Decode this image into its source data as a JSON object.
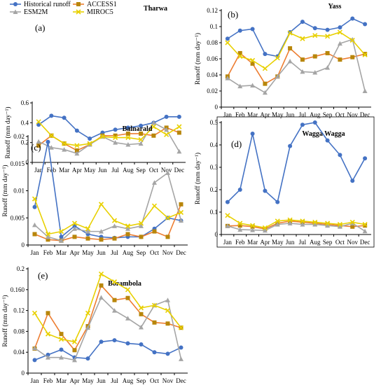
{
  "legend": {
    "entries": [
      {
        "name": "Historical runoff",
        "color": "#4472C4",
        "marker": "circle"
      },
      {
        "name": "ACCESS1",
        "color": "#ED7D31",
        "marker": "square"
      },
      {
        "name": "ESM2M",
        "color": "#A5A5A5",
        "marker": "triangle"
      },
      {
        "name": "MIROC5",
        "color": "#E8D000",
        "marker": "x"
      }
    ]
  },
  "chart_data": [
    {
      "type": "line",
      "panel_label": "(a)",
      "title": "Tharwa",
      "ylabel": "Runoff (mm day⁻¹)",
      "ylim": [
        0,
        0.6
      ],
      "yticks": [
        0,
        0.2,
        0.4,
        0.6
      ],
      "ytick_labels": [
        "0",
        "0.2",
        "0.4",
        "0.6"
      ],
      "categories": [
        "Jan",
        "Feb",
        "Mar",
        "Apr",
        "May",
        "Jun",
        "Jul",
        "Aug",
        "Sep",
        "Oct",
        "Nov",
        "Dec"
      ],
      "series": [
        {
          "name": "Historical runoff",
          "values": [
            0.38,
            0.47,
            0.45,
            0.32,
            0.24,
            0.3,
            0.33,
            0.35,
            0.37,
            0.4,
            0.46,
            0.46
          ]
        },
        {
          "name": "ACCESS1",
          "values": [
            0.17,
            0.27,
            0.19,
            0.12,
            0.18,
            0.27,
            0.27,
            0.29,
            0.29,
            0.27,
            0.35,
            0.3
          ]
        },
        {
          "name": "ESM2M",
          "values": [
            0.21,
            0.15,
            0.13,
            0.09,
            0.18,
            0.26,
            0.2,
            0.18,
            0.19,
            0.4,
            0.33,
            0.11
          ]
        },
        {
          "name": "MIROC5",
          "values": [
            0.41,
            0.27,
            0.19,
            0.17,
            0.19,
            0.26,
            0.25,
            0.25,
            0.23,
            0.36,
            0.28,
            0.36
          ]
        }
      ]
    },
    {
      "type": "line",
      "panel_label": "(b)",
      "title": "Yass",
      "ylabel": "Runoff (mm day⁻¹)",
      "ylim": [
        0,
        0.12
      ],
      "yticks": [
        0,
        0.02,
        0.04,
        0.06,
        0.08,
        0.1,
        0.12
      ],
      "ytick_labels": [
        "0",
        "0.02",
        "0.04",
        "0.06",
        "0.08",
        "0.1",
        "0.12"
      ],
      "categories": [
        "Jan",
        "Feb",
        "Mar",
        "Apr",
        "May",
        "Jun",
        "Jul",
        "Aug",
        "Sep",
        "Oct",
        "Nov",
        "Dec"
      ],
      "series": [
        {
          "name": "Historical runoff",
          "values": [
            0.085,
            0.095,
            0.097,
            0.066,
            0.063,
            0.093,
            0.106,
            0.098,
            0.096,
            0.099,
            0.11,
            0.103
          ]
        },
        {
          "name": "ACCESS1",
          "values": [
            0.038,
            0.067,
            0.054,
            0.029,
            0.038,
            0.073,
            0.059,
            0.063,
            0.067,
            0.059,
            0.062,
            0.066
          ]
        },
        {
          "name": "ESM2M",
          "values": [
            0.036,
            0.026,
            0.027,
            0.018,
            0.038,
            0.057,
            0.044,
            0.043,
            0.049,
            0.079,
            0.084,
            0.02
          ]
        },
        {
          "name": "MIROC5",
          "values": [
            0.08,
            0.063,
            0.058,
            0.048,
            0.061,
            0.092,
            0.085,
            0.089,
            0.088,
            0.093,
            0.083,
            0.065
          ]
        }
      ]
    },
    {
      "type": "line",
      "panel_label": "(c)",
      "title": "Balnarald",
      "ylabel": "Runoff (mm day⁻¹)",
      "ylim": [
        0,
        0.02
      ],
      "yticks": [
        0,
        0.005,
        0.01,
        0.015,
        0.02
      ],
      "ytick_labels": [
        "0",
        "0.005",
        "0.01",
        "0.015",
        "0.02"
      ],
      "categories": [
        "Jan",
        "Feb",
        "Mar",
        "Apr",
        "May",
        "Jun",
        "Jul",
        "Aug",
        "Sep",
        "Oct",
        "Nov",
        "Dec"
      ],
      "series": [
        {
          "name": "Historical runoff",
          "values": [
            0.007,
            0.019,
            0.0015,
            0.0035,
            0.002,
            0.0015,
            0.0013,
            0.0015,
            0.0015,
            0.003,
            0.005,
            0.0045
          ]
        },
        {
          "name": "ACCESS1",
          "values": [
            0.002,
            0.001,
            0.0008,
            0.0015,
            0.0012,
            0.001,
            0.0012,
            0.002,
            0.0015,
            0.0025,
            0.0015,
            0.0075
          ]
        },
        {
          "name": "ESM2M",
          "values": [
            0.0037,
            0.0015,
            0.0008,
            0.003,
            0.0025,
            0.0025,
            0.0035,
            0.003,
            0.0035,
            0.0115,
            0.0133,
            0.0045
          ]
        },
        {
          "name": "MIROC5",
          "values": [
            0.0085,
            0.002,
            0.0025,
            0.004,
            0.003,
            0.0075,
            0.0045,
            0.0035,
            0.004,
            0.0072,
            0.005,
            0.006
          ]
        }
      ]
    },
    {
      "type": "line",
      "panel_label": "(d)",
      "title": "Wagga Wagga",
      "ylabel": "Runoff (mm day⁻¹)",
      "ylim": [
        0,
        0.5
      ],
      "yticks": [
        0,
        0.1,
        0.2,
        0.3,
        0.4,
        0.5
      ],
      "ytick_labels": [
        "0",
        "0.1",
        "0.2",
        "0.3",
        "0.4",
        "0.5"
      ],
      "categories": [
        "Jan",
        "Feb",
        "Mar",
        "Apr",
        "May",
        "Jun",
        "Jul",
        "Aug",
        "Sep",
        "Oct",
        "Nov",
        "Dec"
      ],
      "series": [
        {
          "name": "Historical runoff",
          "values": [
            0.145,
            0.2,
            0.45,
            0.195,
            0.145,
            0.395,
            0.49,
            0.5,
            0.42,
            0.355,
            0.24,
            0.34
          ]
        },
        {
          "name": "ACCESS1",
          "values": [
            0.038,
            0.04,
            0.035,
            0.025,
            0.05,
            0.06,
            0.055,
            0.05,
            0.045,
            0.04,
            0.035,
            0.04
          ]
        },
        {
          "name": "ESM2M",
          "values": [
            0.038,
            0.022,
            0.02,
            0.018,
            0.045,
            0.05,
            0.045,
            0.045,
            0.04,
            0.035,
            0.05,
            0.015
          ]
        },
        {
          "name": "MIROC5",
          "values": [
            0.085,
            0.05,
            0.04,
            0.03,
            0.06,
            0.065,
            0.06,
            0.055,
            0.05,
            0.045,
            0.055,
            0.045
          ]
        }
      ]
    },
    {
      "type": "line",
      "panel_label": "(e)",
      "title": "Borambola",
      "ylabel": "Runoff (mm day⁻¹)",
      "ylim": [
        0,
        0.2
      ],
      "yticks": [
        0,
        0.04,
        0.08,
        0.12,
        0.16,
        0.2
      ],
      "ytick_labels": [
        "0",
        "0.04",
        "0.08",
        "0.12",
        "0.160",
        "0.2"
      ],
      "categories": [
        "Jan",
        "Feb",
        "Mar",
        "Apr",
        "May",
        "Jun",
        "Jul",
        "Aug",
        "Sep",
        "Oct",
        "Nov",
        "Dec"
      ],
      "series": [
        {
          "name": "Historical runoff",
          "values": [
            0.025,
            0.035,
            0.045,
            0.03,
            0.028,
            0.06,
            0.063,
            0.057,
            0.055,
            0.04,
            0.037,
            0.049
          ]
        },
        {
          "name": "ACCESS1",
          "values": [
            0.047,
            0.115,
            0.075,
            0.044,
            0.09,
            0.168,
            0.14,
            0.144,
            0.113,
            0.097,
            0.095,
            0.087
          ]
        },
        {
          "name": "ESM2M",
          "values": [
            0.048,
            0.03,
            0.03,
            0.025,
            0.087,
            0.145,
            0.12,
            0.105,
            0.088,
            0.13,
            0.14,
            0.027
          ]
        },
        {
          "name": "MIROC5",
          "values": [
            0.115,
            0.075,
            0.065,
            0.06,
            0.115,
            0.19,
            0.175,
            0.16,
            0.125,
            0.13,
            0.12,
            0.087
          ]
        }
      ]
    }
  ]
}
